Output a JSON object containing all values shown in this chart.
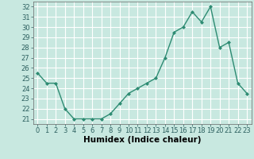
{
  "x": [
    0,
    1,
    2,
    3,
    4,
    5,
    6,
    7,
    8,
    9,
    10,
    11,
    12,
    13,
    14,
    15,
    16,
    17,
    18,
    19,
    20,
    21,
    22,
    23
  ],
  "y": [
    25.5,
    24.5,
    24.5,
    22.0,
    21.0,
    21.0,
    21.0,
    21.0,
    21.5,
    22.5,
    23.5,
    24.0,
    24.5,
    25.0,
    27.0,
    29.5,
    30.0,
    31.5,
    30.5,
    32.0,
    28.0,
    28.5,
    24.5,
    23.5
  ],
  "line_color": "#2d8b72",
  "marker": "D",
  "marker_size": 2.0,
  "line_width": 1.0,
  "bg_color": "#c8e8e0",
  "grid_color": "#ffffff",
  "xlabel": "Humidex (Indice chaleur)",
  "ylim": [
    20.5,
    32.5
  ],
  "xlim": [
    -0.5,
    23.5
  ],
  "yticks": [
    21,
    22,
    23,
    24,
    25,
    26,
    27,
    28,
    29,
    30,
    31,
    32
  ],
  "xtick_labels": [
    "0",
    "1",
    "2",
    "3",
    "4",
    "5",
    "6",
    "7",
    "8",
    "9",
    "10",
    "11",
    "12",
    "13",
    "14",
    "15",
    "16",
    "17",
    "18",
    "19",
    "20",
    "21",
    "22",
    "23"
  ],
  "xlabel_fontsize": 7.5,
  "tick_fontsize": 6.0
}
